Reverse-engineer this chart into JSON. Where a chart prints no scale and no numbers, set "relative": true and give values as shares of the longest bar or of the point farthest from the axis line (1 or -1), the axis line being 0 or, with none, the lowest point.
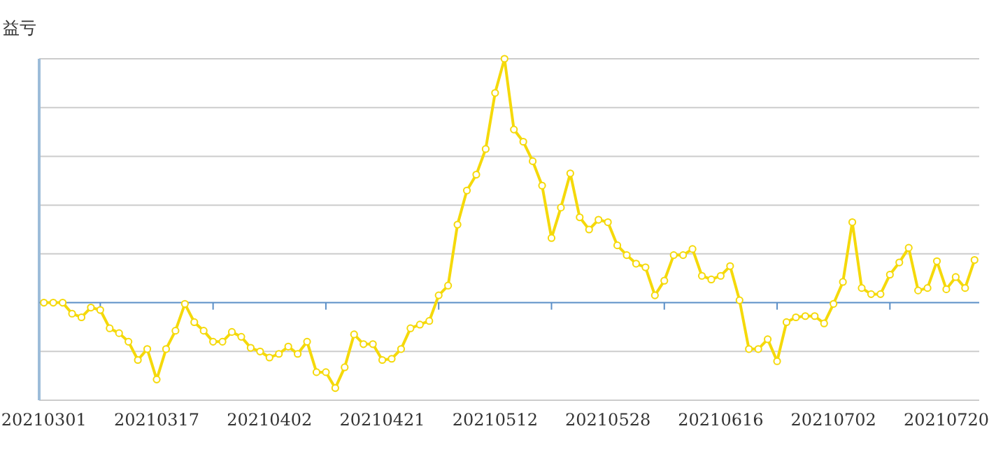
{
  "chart_data": {
    "type": "line",
    "ylabel": "益亏",
    "relative": true,
    "grid": "y",
    "marker": "circle",
    "line_style": "solid",
    "tick_labels": "x",
    "ref_lines": [
      {
        "axis": "y",
        "value": 0,
        "color": "#5b8fc7"
      }
    ],
    "categories": [
      "20210301",
      null,
      null,
      null,
      null,
      null,
      null,
      null,
      null,
      null,
      null,
      null,
      "20210317",
      null,
      null,
      null,
      null,
      null,
      null,
      null,
      null,
      null,
      null,
      null,
      "20210402",
      null,
      null,
      null,
      null,
      null,
      null,
      null,
      null,
      null,
      null,
      null,
      "20210421",
      null,
      null,
      null,
      null,
      null,
      null,
      null,
      null,
      null,
      null,
      null,
      "20210512",
      null,
      null,
      null,
      null,
      null,
      null,
      null,
      null,
      null,
      null,
      null,
      "20210528",
      null,
      null,
      null,
      null,
      null,
      null,
      null,
      null,
      null,
      null,
      null,
      "20210616",
      null,
      null,
      null,
      null,
      null,
      null,
      null,
      null,
      null,
      null,
      null,
      "20210702",
      null,
      null,
      null,
      null,
      null,
      null,
      null,
      null,
      null,
      null,
      null,
      "20210720",
      null,
      null,
      null
    ],
    "series": [
      {
        "color": "#f5d90a",
        "values": [
          0,
          0,
          0,
          -0.045,
          -0.06,
          -0.02,
          -0.03,
          -0.105,
          -0.125,
          -0.16,
          -0.235,
          -0.19,
          -0.315,
          -0.19,
          -0.115,
          -0.005,
          -0.08,
          -0.115,
          -0.16,
          -0.16,
          -0.12,
          -0.14,
          -0.185,
          -0.2,
          -0.225,
          -0.21,
          -0.18,
          -0.21,
          -0.16,
          -0.285,
          -0.285,
          -0.35,
          -0.265,
          -0.13,
          -0.17,
          -0.17,
          -0.235,
          -0.23,
          -0.19,
          -0.105,
          -0.09,
          -0.075,
          0.03,
          0.07,
          0.32,
          0.46,
          0.525,
          0.63,
          0.86,
          1.0,
          0.71,
          0.66,
          0.58,
          0.48,
          0.265,
          0.39,
          0.53,
          0.35,
          0.3,
          0.34,
          0.33,
          0.235,
          0.195,
          0.16,
          0.145,
          0.03,
          0.09,
          0.195,
          0.195,
          0.22,
          0.11,
          0.095,
          0.11,
          0.15,
          0.01,
          -0.19,
          -0.19,
          -0.15,
          -0.24,
          -0.08,
          -0.06,
          -0.055,
          -0.055,
          -0.085,
          -0.005,
          0.085,
          0.33,
          0.06,
          0.035,
          0.035,
          0.115,
          0.165,
          0.225,
          0.05,
          0.06,
          0.17,
          0.055,
          0.105,
          0.06,
          0.175
        ]
      }
    ]
  }
}
